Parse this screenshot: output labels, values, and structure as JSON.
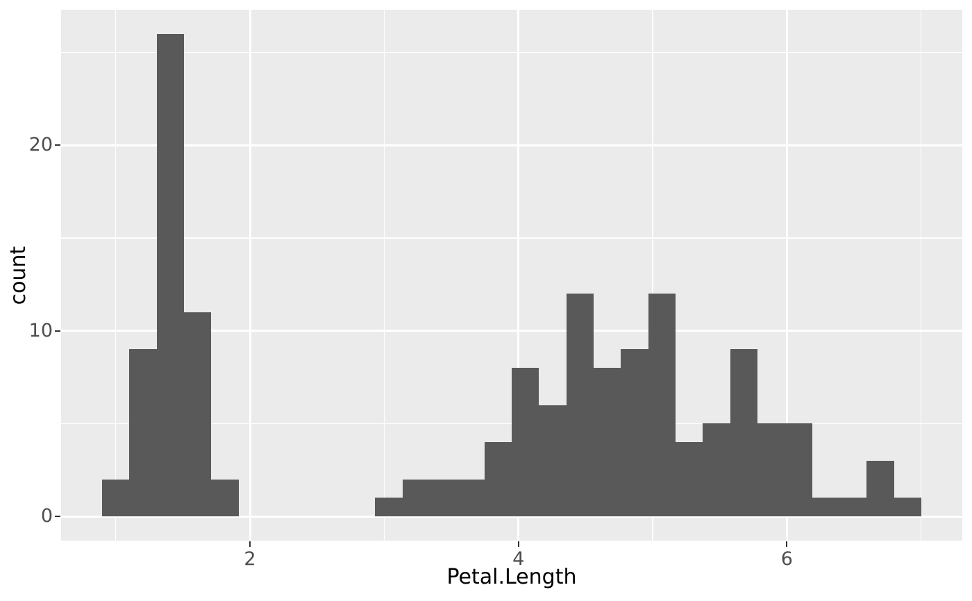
{
  "chart_data": {
    "type": "bar",
    "subtype": "histogram",
    "title": "",
    "xlabel": "Petal.Length",
    "ylabel": "count",
    "bin_start": 0.8983,
    "bin_width": 0.203448,
    "counts": [
      2,
      9,
      26,
      11,
      2,
      0,
      0,
      0,
      0,
      0,
      1,
      2,
      2,
      2,
      4,
      8,
      6,
      12,
      8,
      9,
      12,
      4,
      5,
      9,
      5,
      5,
      1,
      1,
      3,
      1
    ],
    "x_ticks": [
      2,
      4,
      6
    ],
    "y_ticks": [
      0,
      10,
      20
    ],
    "x_minor_ticks": [
      1,
      3,
      5,
      7
    ],
    "y_minor_ticks": [
      5,
      15,
      25
    ],
    "xlim": [
      0.593,
      7.307
    ],
    "ylim": [
      -1.3,
      27.3
    ],
    "grid": true,
    "legend": "none"
  },
  "colors": {
    "bar_fill": "#595959",
    "panel_background": "#EBEBEB",
    "grid_major": "#FFFFFF",
    "grid_minor": "#FFFFFF",
    "tick_label": "#4D4D4D",
    "tick_mark": "#333333",
    "axis_title": "#000000",
    "figure_background": "#FFFFFF"
  }
}
